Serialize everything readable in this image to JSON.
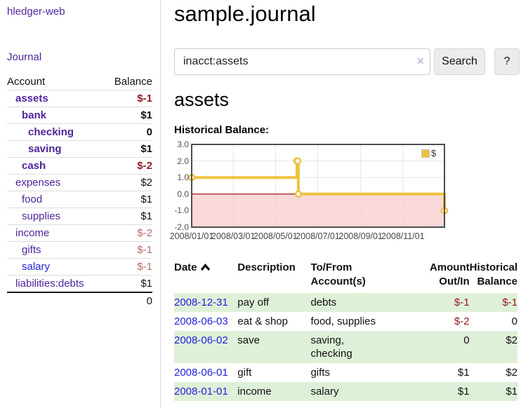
{
  "app": {
    "brand": "hledger-web"
  },
  "sidebar": {
    "journal_link": "Journal",
    "accounts": {
      "header": {
        "account": "Account",
        "balance": "Balance"
      },
      "rows": [
        {
          "name": "assets",
          "balance": "$-1"
        },
        {
          "name": "bank",
          "balance": "$1"
        },
        {
          "name": "checking",
          "balance": "0"
        },
        {
          "name": "saving",
          "balance": "$1"
        },
        {
          "name": "cash",
          "balance": "$-2"
        },
        {
          "name": "expenses",
          "balance": "$2"
        },
        {
          "name": "food",
          "balance": "$1"
        },
        {
          "name": "supplies",
          "balance": "$1"
        },
        {
          "name": "income",
          "balance": "$-2"
        },
        {
          "name": "gifts",
          "balance": "$-1"
        },
        {
          "name": "salary",
          "balance": "$-1"
        },
        {
          "name": "liabilities:debts",
          "balance": "$1"
        }
      ],
      "total": "0"
    }
  },
  "main": {
    "title": "sample.journal",
    "search": {
      "query": "inacct:assets",
      "clear_icon": "×",
      "search_button": "Search",
      "help_button": "?"
    },
    "account_heading": "assets",
    "section_heading": "Historical Balance:",
    "register": {
      "headers": {
        "date": "Date",
        "description": "Description",
        "account": "To/From Account(s)",
        "amount": "Amount Out/In",
        "balance": "Historical Balance"
      },
      "rows": [
        {
          "date": "2008-12-31",
          "description": "pay off",
          "account": "debts",
          "amount": "$-1",
          "balance": "$-1"
        },
        {
          "date": "2008-06-03",
          "description": "eat & shop",
          "account": "food, supplies",
          "amount": "$-2",
          "balance": "0"
        },
        {
          "date": "2008-06-02",
          "description": "save",
          "account": "saving,\nchecking",
          "amount": "0",
          "balance": "$2"
        },
        {
          "date": "2008-06-01",
          "description": "gift",
          "account": "gifts",
          "amount": "$1",
          "balance": "$2"
        },
        {
          "date": "2008-01-01",
          "description": "income",
          "account": "salary",
          "amount": "$1",
          "balance": "$1"
        }
      ]
    }
  },
  "chart_data": {
    "type": "line",
    "step": true,
    "title": "Historical Balance:",
    "series": [
      {
        "name": "$",
        "color": "#edc240",
        "points": [
          [
            "2008-01-01",
            1
          ],
          [
            "2008-06-01",
            2
          ],
          [
            "2008-06-02",
            2
          ],
          [
            "2008-06-03",
            0
          ],
          [
            "2008-12-31",
            -1
          ]
        ]
      }
    ],
    "ylim": [
      -2,
      3
    ],
    "yticks": [
      "3.0",
      "2.0",
      "1.0",
      "0.0",
      "-1.0",
      "-2.0"
    ],
    "xticks": [
      "2008/01/01",
      "2008/03/01",
      "2008/05/01",
      "2008/07/01",
      "2008/09/01",
      "2008/11/01"
    ],
    "x_range": [
      "2008-01-01",
      "2008-12-31"
    ],
    "grid": true,
    "legend_position": "top-right",
    "zero_line_color": "#8b0000",
    "negative_region_color": "#f6caca"
  }
}
